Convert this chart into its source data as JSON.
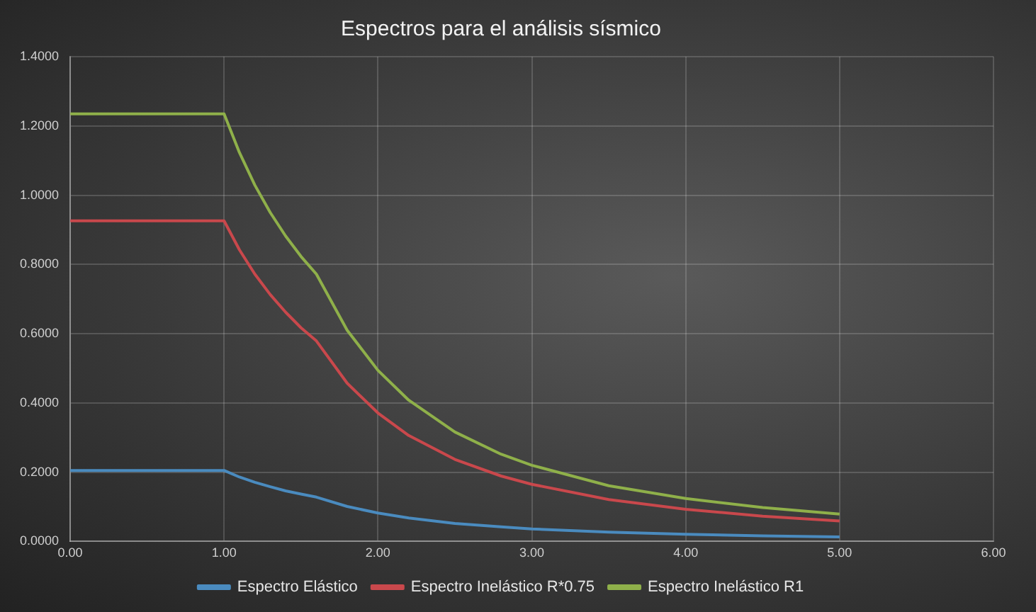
{
  "chart_data": {
    "type": "line",
    "title": "Espectros para el análisis sísmico",
    "x": [
      0,
      1.0,
      1.1,
      1.2,
      1.3,
      1.4,
      1.5,
      1.6,
      1.8,
      2.0,
      2.2,
      2.5,
      2.8,
      3.0,
      3.5,
      4.0,
      4.5,
      5.0
    ],
    "series": [
      {
        "name": "Espectro Elástico",
        "color": "#4a8bbf",
        "values": [
          0.205,
          0.205,
          0.186,
          0.171,
          0.158,
          0.146,
          0.137,
          0.128,
          0.101,
          0.082,
          0.068,
          0.052,
          0.042,
          0.036,
          0.027,
          0.021,
          0.016,
          0.013
        ]
      },
      {
        "name": "Espectro Inelástico R*0.75",
        "color": "#c9484c",
        "values": [
          0.926,
          0.926,
          0.842,
          0.772,
          0.713,
          0.662,
          0.617,
          0.579,
          0.457,
          0.371,
          0.306,
          0.237,
          0.189,
          0.165,
          0.121,
          0.093,
          0.073,
          0.059
        ]
      },
      {
        "name": "Espectro Inelástico R1",
        "color": "#8fb04a",
        "values": [
          1.235,
          1.235,
          1.123,
          1.029,
          0.95,
          0.882,
          0.823,
          0.772,
          0.61,
          0.494,
          0.408,
          0.316,
          0.252,
          0.22,
          0.161,
          0.124,
          0.098,
          0.079
        ]
      }
    ],
    "xlim": [
      0,
      6
    ],
    "xticks": [
      {
        "value": 0,
        "label": "0.00"
      },
      {
        "value": 1,
        "label": "1.00"
      },
      {
        "value": 2,
        "label": "2.00"
      },
      {
        "value": 3,
        "label": "3.00"
      },
      {
        "value": 4,
        "label": "4.00"
      },
      {
        "value": 5,
        "label": "5.00"
      },
      {
        "value": 6,
        "label": "6.00"
      }
    ],
    "ylim": [
      0,
      1.4
    ],
    "yticks": [
      {
        "value": 0,
        "label": "0.0000"
      },
      {
        "value": 0.2,
        "label": "0.2000"
      },
      {
        "value": 0.4,
        "label": "0.4000"
      },
      {
        "value": 0.6,
        "label": "0.6000"
      },
      {
        "value": 0.8,
        "label": "0.8000"
      },
      {
        "value": 1.0,
        "label": "1.0000"
      },
      {
        "value": 1.2,
        "label": "1.2000"
      },
      {
        "value": 1.4,
        "label": "1.4000"
      }
    ],
    "grid": true,
    "legend": "bottom",
    "marker": "none",
    "line_style": "solid"
  }
}
